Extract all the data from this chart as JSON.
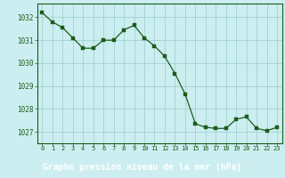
{
  "x": [
    0,
    1,
    2,
    3,
    4,
    5,
    6,
    7,
    8,
    9,
    10,
    11,
    12,
    13,
    14,
    15,
    16,
    17,
    18,
    19,
    20,
    21,
    22,
    23
  ],
  "y": [
    1032.2,
    1031.8,
    1031.55,
    1031.1,
    1030.65,
    1030.65,
    1031.0,
    1031.0,
    1031.45,
    1031.65,
    1031.1,
    1030.75,
    1030.3,
    1029.55,
    1028.65,
    1027.35,
    1027.2,
    1027.15,
    1027.15,
    1027.55,
    1027.65,
    1027.15,
    1027.05,
    1027.2
  ],
  "line_color": "#1a5c1a",
  "marker_color": "#1a5c1a",
  "bg_color": "#cceef0",
  "grid_color": "#99cccc",
  "border_color": "#1a5c1a",
  "xlabel": "Graphe pression niveau de la mer (hPa)",
  "xlabel_bg": "#1a5c1a",
  "xlabel_color": "#ffffff",
  "tick_color": "#1a5c1a",
  "ylim": [
    1026.5,
    1032.6
  ],
  "xlim": [
    -0.5,
    23.5
  ],
  "yticks": [
    1027,
    1028,
    1029,
    1030,
    1031,
    1032
  ],
  "xticks": [
    0,
    1,
    2,
    3,
    4,
    5,
    6,
    7,
    8,
    9,
    10,
    11,
    12,
    13,
    14,
    15,
    16,
    17,
    18,
    19,
    20,
    21,
    22,
    23
  ],
  "xtick_labels": [
    "0",
    "1",
    "2",
    "3",
    "4",
    "5",
    "6",
    "7",
    "8",
    "9",
    "10",
    "11",
    "12",
    "13",
    "14",
    "15",
    "16",
    "17",
    "18",
    "19",
    "20",
    "21",
    "22",
    "23"
  ]
}
